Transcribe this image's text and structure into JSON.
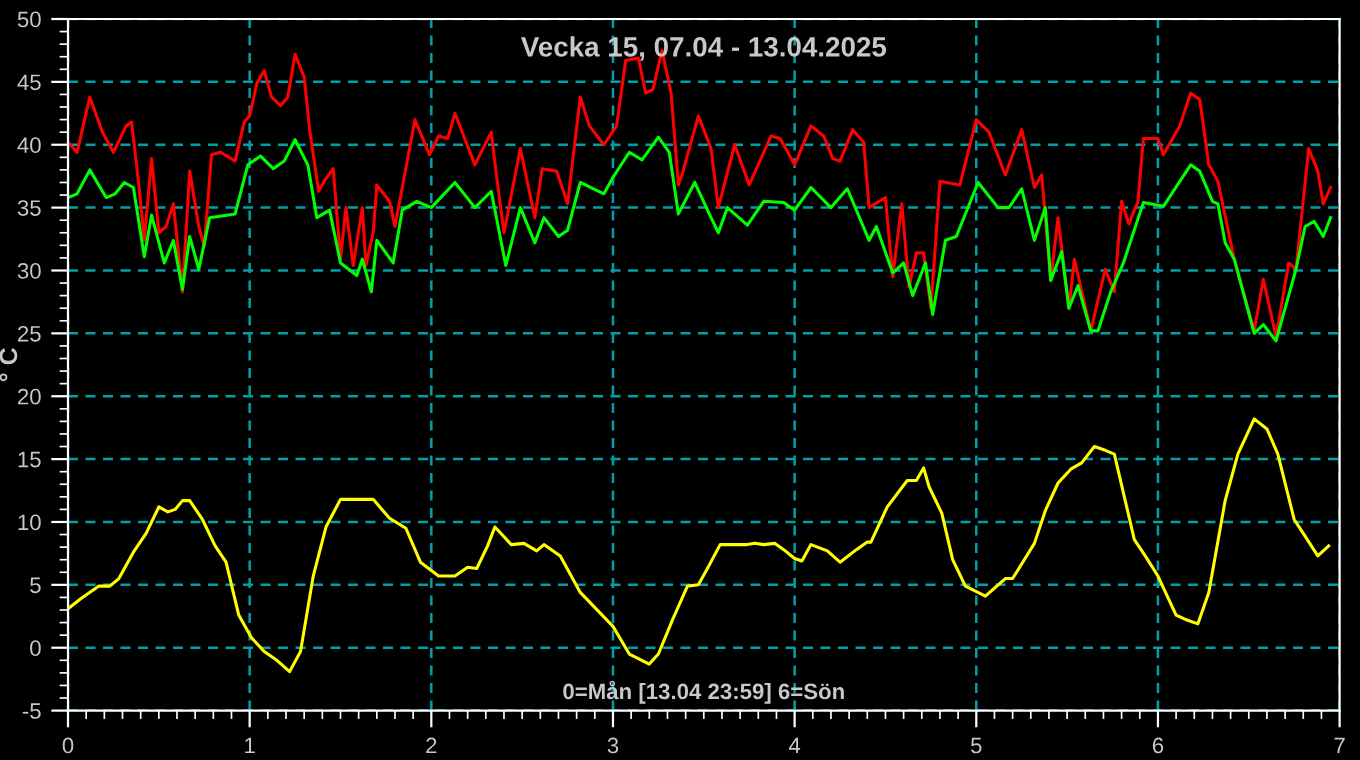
{
  "chart_data": {
    "type": "line",
    "title": "Vecka 15, 07.04 - 13.04.2025",
    "ylabel": "° C",
    "annotations": [
      "0=Mån [13.04 23:59] 6=Sön"
    ],
    "xlim": [
      0,
      7
    ],
    "xticks": [
      0,
      1,
      2,
      3,
      4,
      5,
      6,
      7
    ],
    "ylim": [
      -5,
      50
    ],
    "yticks": [
      -5,
      0,
      5,
      10,
      15,
      20,
      25,
      30,
      35,
      40,
      45,
      50
    ],
    "grid": true,
    "marker": "none",
    "line_style": "solid",
    "series": [
      {
        "color": "#ff0000",
        "x": [
          0,
          0.05,
          0.12,
          0.19,
          0.25,
          0.32,
          0.35,
          0.39,
          0.42,
          0.46,
          0.5,
          0.54,
          0.58,
          0.63,
          0.67,
          0.72,
          0.75,
          0.79,
          0.84,
          0.92,
          0.97,
          1.0,
          1.04,
          1.08,
          1.12,
          1.17,
          1.21,
          1.25,
          1.3,
          1.33,
          1.38,
          1.41,
          1.46,
          1.5,
          1.53,
          1.57,
          1.62,
          1.64,
          1.68,
          1.7,
          1.77,
          1.8,
          1.91,
          1.99,
          2.04,
          2.09,
          2.13,
          2.24,
          2.33,
          2.36,
          2.4,
          2.49,
          2.57,
          2.61,
          2.69,
          2.75,
          2.82,
          2.87,
          2.95,
          3.02,
          3.07,
          3.14,
          3.18,
          3.22,
          3.27,
          3.32,
          3.36,
          3.38,
          3.47,
          3.54,
          3.58,
          3.67,
          3.75,
          3.87,
          3.92,
          4.0,
          4.09,
          4.16,
          4.21,
          4.25,
          4.32,
          4.38,
          4.41,
          4.5,
          4.54,
          4.59,
          4.63,
          4.67,
          4.71,
          4.75,
          4.8,
          4.91,
          5.0,
          5.07,
          5.16,
          5.25,
          5.32,
          5.36,
          5.41,
          5.45,
          5.51,
          5.54,
          5.63,
          5.71,
          5.76,
          5.8,
          5.84,
          5.89,
          5.92,
          6.0,
          6.03,
          6.12,
          6.18,
          6.23,
          6.28,
          6.33,
          6.42,
          6.53,
          6.58,
          6.62,
          6.65,
          6.72,
          6.76,
          6.83,
          6.88,
          6.91,
          6.95
        ],
        "values": [
          40.2,
          39.4,
          43.8,
          41,
          39.4,
          41.5,
          41.8,
          36.8,
          32.4,
          38.9,
          33,
          33.5,
          35.3,
          28.3,
          37.9,
          33.5,
          31.9,
          39.2,
          39.4,
          38.7,
          41.8,
          42.3,
          44.9,
          45.9,
          43.8,
          43.1,
          43.8,
          47.2,
          45.4,
          41.2,
          36.3,
          37.1,
          38.1,
          30.9,
          35,
          30.4,
          35,
          30.4,
          33,
          36.8,
          35.5,
          33.5,
          42,
          39.2,
          40.7,
          40.5,
          42.5,
          38.4,
          41,
          37.4,
          33,
          39.7,
          34.2,
          38.1,
          37.9,
          35.3,
          43.8,
          41.5,
          40,
          41.5,
          46.7,
          46.9,
          44.1,
          44.4,
          47.5,
          44.1,
          36.8,
          37.6,
          42.3,
          39.7,
          35,
          40,
          36.8,
          40.7,
          40.5,
          38.4,
          41.5,
          40.7,
          38.9,
          38.7,
          41.2,
          40.2,
          35,
          35.8,
          29.5,
          35.3,
          28.7,
          31.4,
          31.4,
          27,
          37.1,
          36.8,
          42,
          41,
          37.6,
          41.2,
          36.6,
          37.6,
          29.2,
          34.2,
          27,
          30.9,
          25.2,
          30.1,
          28.3,
          35.5,
          33.7,
          35.5,
          40.5,
          40.5,
          39.2,
          41.5,
          44.1,
          43.6,
          38.4,
          37.1,
          30.9,
          25.2,
          29.3,
          26.7,
          24.7,
          30.6,
          30.1,
          39.7,
          37.9,
          35.3,
          36.6
        ]
      },
      {
        "color": "#00ff00",
        "x": [
          0,
          0.05,
          0.12,
          0.21,
          0.26,
          0.31,
          0.36,
          0.42,
          0.46,
          0.53,
          0.58,
          0.63,
          0.67,
          0.72,
          0.78,
          0.92,
          0.99,
          1.06,
          1.13,
          1.19,
          1.25,
          1.32,
          1.37,
          1.44,
          1.5,
          1.59,
          1.62,
          1.67,
          1.7,
          1.79,
          1.84,
          1.92,
          2.0,
          2.13,
          2.24,
          2.33,
          2.41,
          2.49,
          2.57,
          2.62,
          2.7,
          2.75,
          2.82,
          2.95,
          3.0,
          3.09,
          3.16,
          3.25,
          3.31,
          3.36,
          3.45,
          3.53,
          3.58,
          3.63,
          3.74,
          3.83,
          3.94,
          4.0,
          4.09,
          4.2,
          4.29,
          4.41,
          4.45,
          4.54,
          4.6,
          4.65,
          4.72,
          4.76,
          4.83,
          4.89,
          5.01,
          5.12,
          5.18,
          5.25,
          5.32,
          5.38,
          5.41,
          5.47,
          5.51,
          5.56,
          5.63,
          5.67,
          5.74,
          5.81,
          5.92,
          6.03,
          6.18,
          6.23,
          6.3,
          6.33,
          6.37,
          6.42,
          6.53,
          6.58,
          6.65,
          6.76,
          6.81,
          6.86,
          6.91,
          6.95
        ],
        "values": [
          35.8,
          36.1,
          38,
          35.8,
          36.1,
          37,
          36.6,
          31.1,
          34.4,
          30.6,
          32.4,
          28.5,
          32.7,
          30.1,
          34.2,
          34.5,
          38.4,
          39.1,
          38.1,
          38.7,
          40.4,
          38.4,
          34.2,
          34.8,
          30.6,
          29.6,
          30.9,
          28.3,
          32.4,
          30.6,
          34.8,
          35.5,
          35,
          37,
          35,
          36.3,
          30.4,
          35,
          32.2,
          34.2,
          32.7,
          33.2,
          37,
          36.1,
          37.4,
          39.4,
          38.8,
          40.6,
          39.4,
          34.5,
          37,
          34.5,
          33,
          35,
          33.6,
          35.5,
          35.4,
          34.8,
          36.6,
          35,
          36.5,
          32.4,
          33.5,
          29.8,
          30.6,
          28,
          30.6,
          26.5,
          32.4,
          32.7,
          37,
          35,
          35,
          36.5,
          32.4,
          35,
          29.2,
          31.5,
          27,
          28.8,
          25.2,
          25.2,
          28.3,
          30.6,
          35.4,
          35.1,
          38.4,
          37.9,
          35.5,
          35.3,
          32.2,
          30.9,
          25,
          25.7,
          24.4,
          30.1,
          33.5,
          33.9,
          32.7,
          34.2
        ]
      },
      {
        "color": "#ffff00",
        "x": [
          0,
          0.07,
          0.17,
          0.23,
          0.28,
          0.36,
          0.43,
          0.5,
          0.55,
          0.59,
          0.63,
          0.67,
          0.74,
          0.81,
          0.87,
          0.94,
          1.01,
          1.08,
          1.15,
          1.22,
          1.28,
          1.35,
          1.42,
          1.5,
          1.55,
          1.68,
          1.77,
          1.86,
          1.94,
          2.04,
          2.13,
          2.2,
          2.25,
          2.31,
          2.35,
          2.44,
          2.51,
          2.58,
          2.62,
          2.71,
          2.82,
          3.0,
          3.09,
          3.2,
          3.25,
          3.33,
          3.41,
          3.47,
          3.52,
          3.59,
          3.74,
          3.78,
          3.83,
          3.89,
          3.94,
          4.0,
          4.04,
          4.09,
          4.18,
          4.25,
          4.34,
          4.4,
          4.42,
          4.51,
          4.62,
          4.67,
          4.71,
          4.74,
          4.81,
          4.87,
          4.94,
          5.05,
          5.16,
          5.2,
          5.32,
          5.38,
          5.45,
          5.52,
          5.58,
          5.65,
          5.71,
          5.76,
          5.87,
          5.93,
          6.0,
          6.1,
          6.16,
          6.22,
          6.28,
          6.37,
          6.44,
          6.53,
          6.6,
          6.66,
          6.75,
          6.8,
          6.88,
          6.94
        ],
        "values": [
          3.1,
          3.9,
          4.9,
          4.9,
          5.5,
          7.6,
          9.1,
          11.2,
          10.8,
          11,
          11.7,
          11.7,
          10.2,
          8.1,
          6.8,
          2.6,
          0.8,
          -0.3,
          -1,
          -1.9,
          -0.3,
          5.7,
          9.6,
          11.8,
          11.8,
          11.8,
          10.3,
          9.5,
          6.8,
          5.7,
          5.7,
          6.4,
          6.3,
          8.1,
          9.6,
          8.2,
          8.3,
          7.7,
          8.2,
          7.3,
          4.4,
          1.7,
          -0.5,
          -1.3,
          -0.5,
          2.3,
          4.9,
          5,
          6.3,
          8.2,
          8.2,
          8.3,
          8.2,
          8.3,
          7.8,
          7.1,
          6.9,
          8.2,
          7.7,
          6.8,
          7.8,
          8.4,
          8.4,
          11.2,
          13.3,
          13.3,
          14.3,
          12.8,
          10.7,
          7,
          4.9,
          4.1,
          5.5,
          5.5,
          8.3,
          10.9,
          13.1,
          14.2,
          14.7,
          16,
          15.7,
          15.4,
          8.6,
          7.3,
          5.7,
          2.6,
          2.2,
          1.9,
          4.4,
          11.7,
          15.4,
          18.2,
          17.4,
          15.4,
          10.2,
          9.1,
          7.3,
          8.1
        ]
      }
    ]
  }
}
